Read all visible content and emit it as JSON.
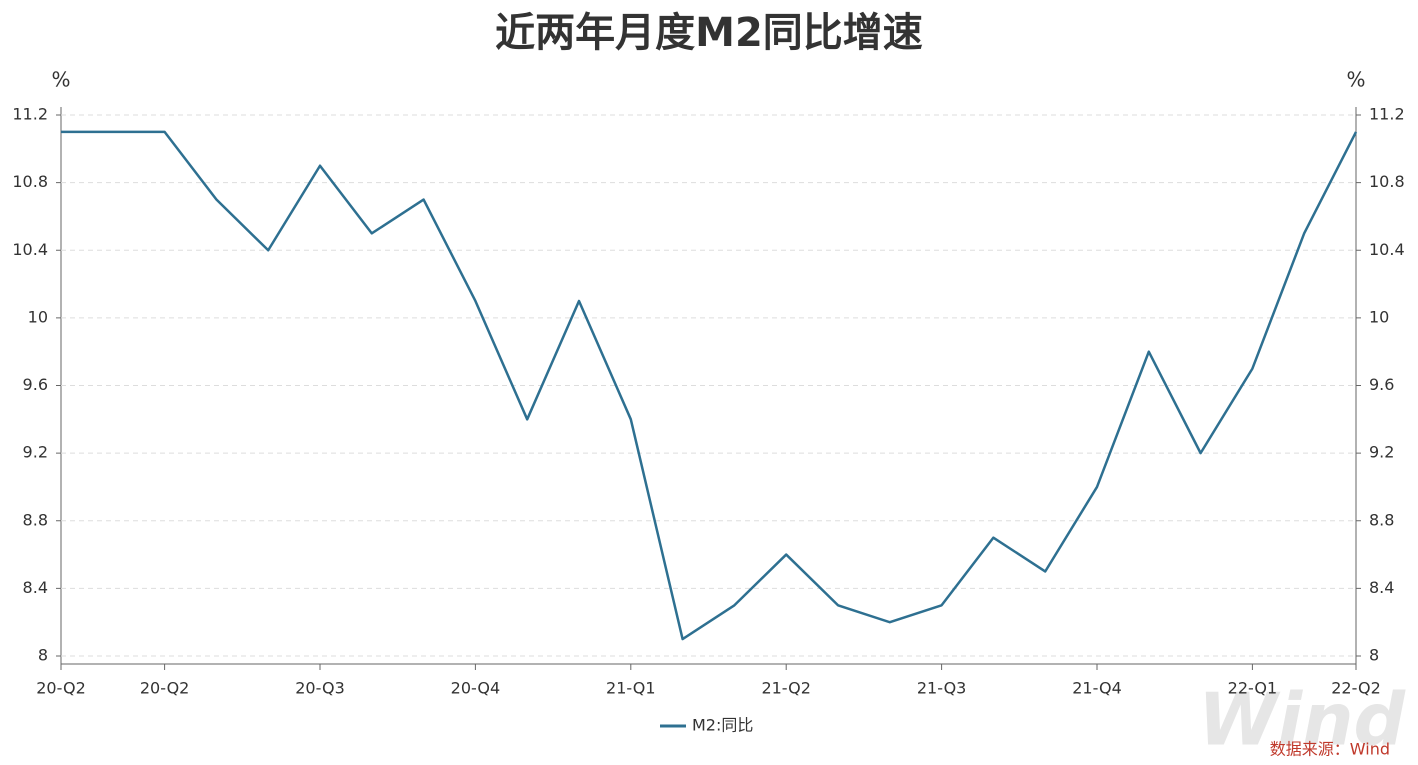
{
  "chart_data": {
    "type": "line",
    "title": "近两年月度M2同比增速",
    "y_unit": "%",
    "y2_unit": "%",
    "categories": [
      "20-Q2",
      null,
      "20-Q2",
      null,
      null,
      "20-Q3",
      null,
      null,
      "20-Q4",
      null,
      null,
      "21-Q1",
      null,
      null,
      "21-Q2",
      null,
      null,
      "21-Q3",
      null,
      null,
      "21-Q4",
      null,
      null,
      "22-Q1",
      null,
      "22-Q2"
    ],
    "series": [
      {
        "name": "M2:同比",
        "color": "#2e7091",
        "values": [
          11.1,
          11.1,
          11.1,
          10.7,
          10.4,
          10.9,
          10.5,
          10.7,
          10.1,
          9.4,
          10.1,
          9.4,
          8.1,
          8.3,
          8.6,
          8.3,
          8.2,
          8.3,
          8.7,
          8.5,
          9.0,
          9.8,
          9.2,
          9.7,
          10.5,
          11.1
        ]
      }
    ],
    "ylim": [
      8,
      11.2
    ],
    "yticks": [
      8,
      8.4,
      8.8,
      9.2,
      9.6,
      10,
      10.4,
      10.8,
      11.2
    ],
    "y2lim": [
      8,
      11.2
    ],
    "y2ticks": [
      8,
      8.4,
      8.8,
      9.2,
      9.6,
      10,
      10.4,
      10.8,
      11.2
    ],
    "grid": true,
    "legend": "bottom",
    "source": "数据来源：Wind",
    "watermark": "Wind"
  }
}
